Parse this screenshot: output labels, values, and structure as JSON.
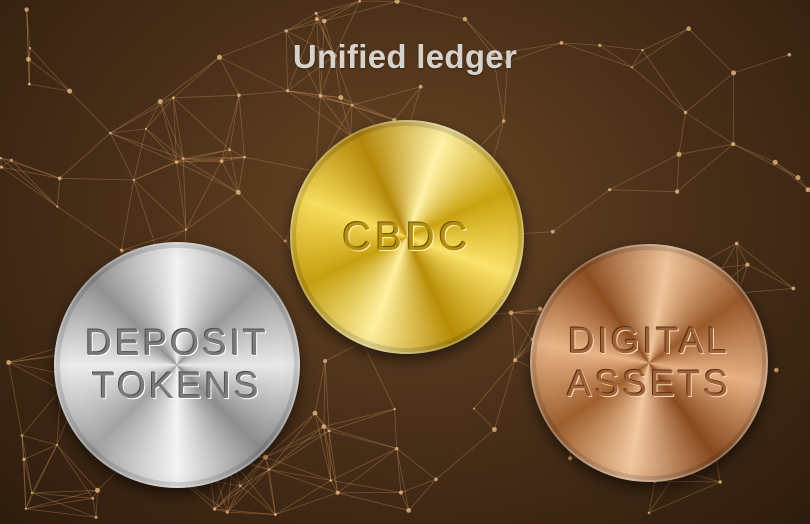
{
  "title": "Unified ledger",
  "coins": {
    "deposit_tokens": {
      "line1": "DEPOSIT",
      "line2": "TOKENS"
    },
    "cbdc": {
      "line1": "CBDC"
    },
    "digital_assets": {
      "line1": "DIGITAL",
      "line2": "ASSETS"
    }
  },
  "colors": {
    "background": "#4c311a",
    "network": "#d9a066",
    "title_text": "#d7d2cc",
    "silver": "#c8c8c8",
    "gold": "#e6c23a",
    "bronze": "#c4804e"
  }
}
